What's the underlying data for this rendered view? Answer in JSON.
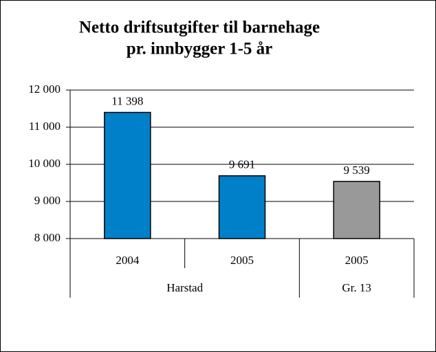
{
  "chart_data": {
    "type": "bar",
    "title": [
      "Netto driftsutgifter til barnehage",
      "pr. innbygger 1-5 år"
    ],
    "categories": [
      "2004",
      "2005",
      "2005"
    ],
    "category_groups": [
      "Harstad",
      "Harstad",
      "Gr. 13"
    ],
    "values": [
      11398,
      9691,
      9539
    ],
    "value_labels": [
      "11 398",
      "9 691",
      "9 539"
    ],
    "colors": [
      "#0080c8",
      "#0080c8",
      "#999999"
    ],
    "ylim": [
      8000,
      12000
    ],
    "yticks": [
      {
        "value": 8000,
        "label": "8 000"
      },
      {
        "value": 9000,
        "label": "9 000"
      },
      {
        "value": 10000,
        "label": "10 000"
      },
      {
        "value": 11000,
        "label": "11 000"
      },
      {
        "value": 12000,
        "label": "12 000"
      }
    ],
    "grid": true
  }
}
